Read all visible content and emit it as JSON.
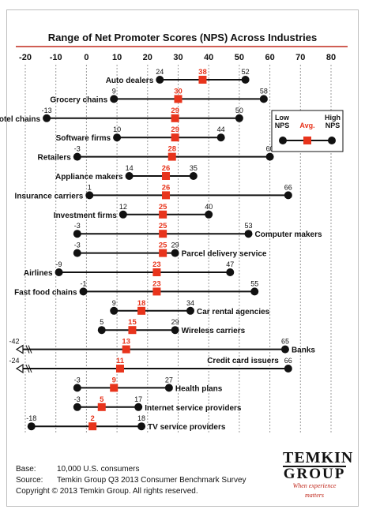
{
  "chart_data": {
    "type": "range",
    "title": "Range of Net Promoter Scores (NPS) Across Industries",
    "xlim": [
      -20,
      80
    ],
    "ticks": [
      -20,
      -10,
      0,
      10,
      20,
      30,
      40,
      50,
      60,
      70,
      80
    ],
    "legend": {
      "low": [
        "Low",
        "NPS"
      ],
      "avg": "Avg.",
      "high": [
        "High",
        "NPS"
      ]
    },
    "rows": [
      {
        "industry": "Auto dealers",
        "low": 24,
        "avg": 38,
        "high": 52,
        "label_pos": "left"
      },
      {
        "industry": "Grocery chains",
        "low": 9,
        "avg": 30,
        "high": 58,
        "label_pos": "left"
      },
      {
        "industry": "Hotel chains",
        "low": -13,
        "avg": 29,
        "high": 50,
        "label_pos": "left"
      },
      {
        "industry": "Software firms",
        "low": 10,
        "avg": 29,
        "high": 44,
        "label_pos": "left"
      },
      {
        "industry": "Retailers",
        "low": -3,
        "avg": 28,
        "high": 60,
        "label_pos": "left"
      },
      {
        "industry": "Appliance makers",
        "low": 14,
        "avg": 26,
        "high": 35,
        "label_pos": "left"
      },
      {
        "industry": "Insurance carriers",
        "low": 1,
        "avg": 26,
        "high": 66,
        "label_pos": "left"
      },
      {
        "industry": "Investment firms",
        "low": 12,
        "avg": 25,
        "high": 40,
        "label_pos": "left"
      },
      {
        "industry": "Computer makers",
        "low": -3,
        "avg": 25,
        "high": 53,
        "label_pos": "right"
      },
      {
        "industry": "Parcel delivery service",
        "low": -3,
        "avg": 25,
        "high": 29,
        "label_pos": "right"
      },
      {
        "industry": "Airlines",
        "low": -9,
        "avg": 23,
        "high": 47,
        "label_pos": "left"
      },
      {
        "industry": "Fast food chains",
        "low": -1,
        "avg": 23,
        "high": 55,
        "label_pos": "left"
      },
      {
        "industry": "Car rental agencies",
        "low": 9,
        "avg": 18,
        "high": 34,
        "label_pos": "right"
      },
      {
        "industry": "Wireless carriers",
        "low": 5,
        "avg": 15,
        "high": 29,
        "label_pos": "right"
      },
      {
        "industry": "Banks",
        "low": -42,
        "avg": 13,
        "high": 65,
        "label_pos": "right"
      },
      {
        "industry": "Credit card issuers",
        "low": -24,
        "avg": 11,
        "high": 66,
        "label_pos": "above"
      },
      {
        "industry": "Health plans",
        "low": -3,
        "avg": 9,
        "high": 27,
        "label_pos": "right"
      },
      {
        "industry": "Internet service providers",
        "low": -3,
        "avg": 5,
        "high": 17,
        "label_pos": "right"
      },
      {
        "industry": "TV service providers",
        "low": -18,
        "avg": 2,
        "high": 18,
        "label_pos": "right"
      }
    ]
  },
  "footer": {
    "base_key": "Base:",
    "base_val": "10,000 U.S. consumers",
    "source_key": "Source:",
    "source_val": "Temkin Group Q3 2013 Consumer Benchmark Survey",
    "copyright": "Copyright © 2013 Temkin Group. All rights reserved."
  },
  "logo": {
    "line1": "TEMKIN",
    "line2": "GROUP",
    "tagline": "When experience matters"
  },
  "colors": {
    "accent": "#e8341c",
    "title_rule": "#c0281c",
    "ink": "#111111"
  }
}
